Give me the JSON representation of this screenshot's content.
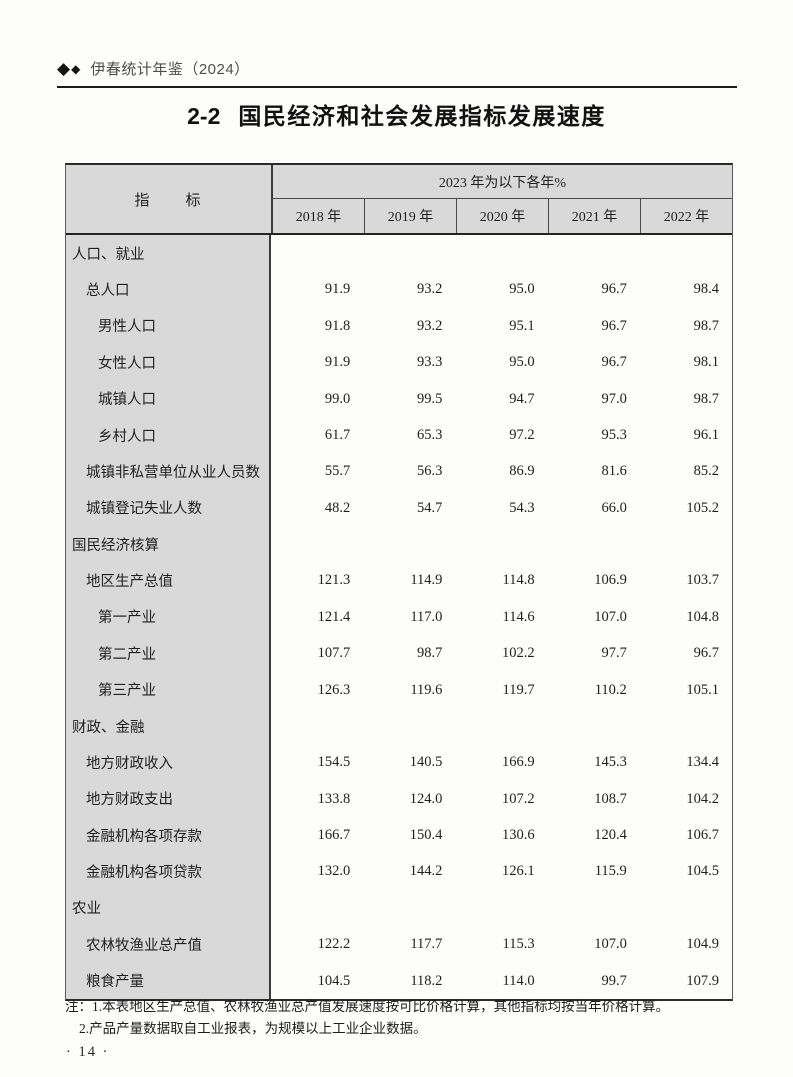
{
  "page": {
    "running_header": "伊春统计年鉴（2024）",
    "page_number": "· 14 ·"
  },
  "title": {
    "number": "2-2",
    "text": "国民经济和社会发展指标发展速度"
  },
  "table": {
    "indicator_header": "指　　标",
    "span_header": "2023 年为以下各年%",
    "year_headers": [
      "2018 年",
      "2019 年",
      "2020 年",
      "2021 年",
      "2022 年"
    ],
    "rows": [
      {
        "label": "人口、就业",
        "indent": 0,
        "values": [
          "",
          "",
          "",
          "",
          ""
        ]
      },
      {
        "label": "总人口",
        "indent": 1,
        "values": [
          "91.9",
          "93.2",
          "95.0",
          "96.7",
          "98.4"
        ]
      },
      {
        "label": "男性人口",
        "indent": 2,
        "values": [
          "91.8",
          "93.2",
          "95.1",
          "96.7",
          "98.7"
        ]
      },
      {
        "label": "女性人口",
        "indent": 2,
        "values": [
          "91.9",
          "93.3",
          "95.0",
          "96.7",
          "98.1"
        ]
      },
      {
        "label": "城镇人口",
        "indent": 2,
        "values": [
          "99.0",
          "99.5",
          "94.7",
          "97.0",
          "98.7"
        ]
      },
      {
        "label": "乡村人口",
        "indent": 2,
        "values": [
          "61.7",
          "65.3",
          "97.2",
          "95.3",
          "96.1"
        ]
      },
      {
        "label": "城镇非私营单位从业人员数",
        "indent": 1,
        "values": [
          "55.7",
          "56.3",
          "86.9",
          "81.6",
          "85.2"
        ]
      },
      {
        "label": "城镇登记失业人数",
        "indent": 1,
        "values": [
          "48.2",
          "54.7",
          "54.3",
          "66.0",
          "105.2"
        ]
      },
      {
        "label": "国民经济核算",
        "indent": 0,
        "values": [
          "",
          "",
          "",
          "",
          ""
        ]
      },
      {
        "label": "地区生产总值",
        "indent": 1,
        "values": [
          "121.3",
          "114.9",
          "114.8",
          "106.9",
          "103.7"
        ]
      },
      {
        "label": "第一产业",
        "indent": 2,
        "values": [
          "121.4",
          "117.0",
          "114.6",
          "107.0",
          "104.8"
        ]
      },
      {
        "label": "第二产业",
        "indent": 2,
        "values": [
          "107.7",
          "98.7",
          "102.2",
          "97.7",
          "96.7"
        ]
      },
      {
        "label": "第三产业",
        "indent": 2,
        "values": [
          "126.3",
          "119.6",
          "119.7",
          "110.2",
          "105.1"
        ]
      },
      {
        "label": "财政、金融",
        "indent": 0,
        "values": [
          "",
          "",
          "",
          "",
          ""
        ]
      },
      {
        "label": "地方财政收入",
        "indent": 1,
        "values": [
          "154.5",
          "140.5",
          "166.9",
          "145.3",
          "134.4"
        ]
      },
      {
        "label": "地方财政支出",
        "indent": 1,
        "values": [
          "133.8",
          "124.0",
          "107.2",
          "108.7",
          "104.2"
        ]
      },
      {
        "label": "金融机构各项存款",
        "indent": 1,
        "values": [
          "166.7",
          "150.4",
          "130.6",
          "120.4",
          "106.7"
        ]
      },
      {
        "label": "金融机构各项贷款",
        "indent": 1,
        "values": [
          "132.0",
          "144.2",
          "126.1",
          "115.9",
          "104.5"
        ]
      },
      {
        "label": "农业",
        "indent": 0,
        "values": [
          "",
          "",
          "",
          "",
          ""
        ]
      },
      {
        "label": "农林牧渔业总产值",
        "indent": 1,
        "values": [
          "122.2",
          "117.7",
          "115.3",
          "107.0",
          "104.9"
        ]
      },
      {
        "label": "粮食产量",
        "indent": 1,
        "values": [
          "104.5",
          "118.2",
          "114.0",
          "99.7",
          "107.9"
        ]
      }
    ]
  },
  "notes": {
    "line1": "注：1.本表地区生产总值、农林牧渔业总产值发展速度按可比价格计算，其他指标均按当年价格计算。",
    "line2": "2.产品产量数据取自工业报表，为规模以上工业企业数据。"
  },
  "colors": {
    "header_bg": "#d9d9d9",
    "border_dark": "#2b2b2b",
    "text": "#1f1f1f",
    "running_header_text": "#4d4d4d"
  }
}
